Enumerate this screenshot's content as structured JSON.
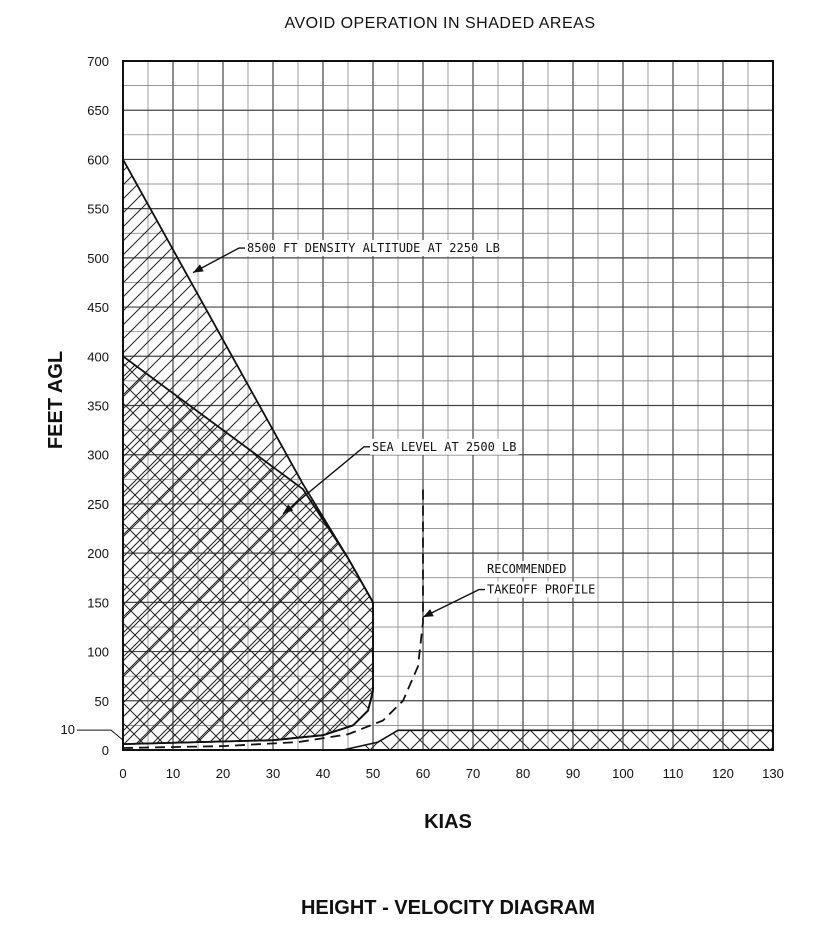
{
  "chart_data": {
    "type": "line",
    "title": "AVOID OPERATION IN SHADED AREAS",
    "subtitle": "HEIGHT - VELOCITY DIAGRAM",
    "xlabel": "KIAS",
    "ylabel": "FEET AGL",
    "xlim": [
      0,
      130
    ],
    "ylim": [
      0,
      700
    ],
    "grid": true,
    "x_ticks": [
      0,
      10,
      20,
      30,
      40,
      50,
      60,
      70,
      80,
      90,
      100,
      110,
      120,
      130
    ],
    "y_ticks": [
      0,
      50,
      100,
      150,
      200,
      250,
      300,
      350,
      400,
      450,
      500,
      550,
      600,
      650,
      700
    ],
    "y_extra_tick": {
      "value": 10,
      "label": "10"
    },
    "series": [
      {
        "name": "8500 FT DENSITY ALTITUDE AT 2250 LB",
        "style": "solid",
        "shading": "hatched",
        "points": [
          [
            0,
            600
          ],
          [
            36,
            270
          ],
          [
            45,
            195
          ],
          [
            50,
            150
          ],
          [
            50,
            60
          ],
          [
            49,
            40
          ],
          [
            46,
            25
          ],
          [
            40,
            15
          ],
          [
            30,
            10
          ],
          [
            15,
            8
          ],
          [
            0,
            6
          ]
        ]
      },
      {
        "name": "SEA LEVEL AT 2500 LB",
        "style": "solid",
        "shading": "crosshatched",
        "points": [
          [
            0,
            400
          ],
          [
            36,
            265
          ],
          [
            45,
            195
          ],
          [
            50,
            150
          ],
          [
            50,
            60
          ],
          [
            49,
            40
          ],
          [
            46,
            25
          ],
          [
            40,
            15
          ],
          [
            30,
            10
          ],
          [
            15,
            8
          ],
          [
            0,
            6
          ]
        ]
      },
      {
        "name": "RECOMMENDED TAKEOFF PROFILE",
        "style": "dashed",
        "points": [
          [
            0,
            2
          ],
          [
            20,
            4
          ],
          [
            35,
            8
          ],
          [
            45,
            16
          ],
          [
            52,
            30
          ],
          [
            56,
            50
          ],
          [
            59,
            85
          ],
          [
            60,
            130
          ],
          [
            60,
            270
          ]
        ]
      }
    ],
    "high_speed_band": {
      "shading": "crosshatched",
      "points": [
        [
          44,
          0
        ],
        [
          51,
          8
        ],
        [
          55,
          20
        ],
        [
          130,
          20
        ],
        [
          130,
          0
        ]
      ]
    },
    "annotations": [
      {
        "text": "8500 FT DENSITY ALTITUDE AT 2250 LB",
        "x": 24,
        "y": 510,
        "arrow_to": [
          14,
          485
        ]
      },
      {
        "text": "SEA LEVEL AT 2500 LB",
        "x": 49,
        "y": 308,
        "arrow_to": [
          32,
          240
        ]
      },
      {
        "text": "RECOMMENDED",
        "x": 72,
        "y": 184
      },
      {
        "text": "TAKEOFF PROFILE",
        "x": 72,
        "y": 163,
        "arrow_to": [
          60,
          135
        ]
      }
    ]
  }
}
